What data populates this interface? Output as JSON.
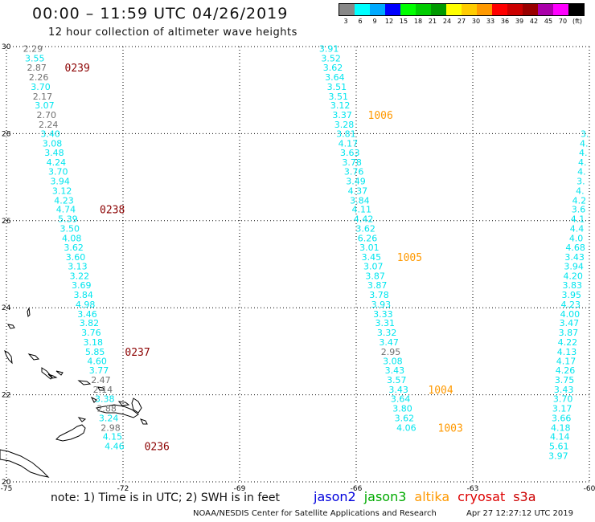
{
  "title": "00:00 – 11:59 UTC 04/26/2019",
  "subtitle": "12 hour collection of altimeter wave heights",
  "legend": {
    "unit": "(ft)",
    "bins": [
      {
        "label": "3",
        "color": "#888888"
      },
      {
        "label": "6",
        "color": "#00ffff"
      },
      {
        "label": "9",
        "color": "#00aaff"
      },
      {
        "label": "12",
        "color": "#0000ff"
      },
      {
        "label": "15",
        "color": "#00ff00"
      },
      {
        "label": "18",
        "color": "#00cc00"
      },
      {
        "label": "21",
        "color": "#009900"
      },
      {
        "label": "24",
        "color": "#ffff00"
      },
      {
        "label": "27",
        "color": "#ffcc00"
      },
      {
        "label": "30",
        "color": "#ff9900"
      },
      {
        "label": "33",
        "color": "#ff0000"
      },
      {
        "label": "36",
        "color": "#cc0000"
      },
      {
        "label": "39",
        "color": "#990000"
      },
      {
        "label": "42",
        "color": "#aa00aa"
      },
      {
        "label": "45",
        "color": "#ff00ff"
      },
      {
        "label": "70",
        "color": "#000000"
      }
    ]
  },
  "map": {
    "lon_range": [
      -75,
      -60
    ],
    "lat_range": [
      20,
      30
    ],
    "lon_labels": [
      {
        "lon": -75,
        "text": "-75"
      },
      {
        "lon": -72,
        "text": "-72"
      },
      {
        "lon": -69,
        "text": "-69"
      },
      {
        "lon": -66,
        "text": "-66"
      },
      {
        "lon": -63,
        "text": "-63"
      },
      {
        "lon": -60,
        "text": "-60"
      }
    ],
    "lat_labels": [
      {
        "lat": 30,
        "text": "30"
      },
      {
        "lat": 28,
        "text": "28"
      },
      {
        "lat": 26,
        "text": "26"
      },
      {
        "lat": 24,
        "text": "24"
      },
      {
        "lat": 22,
        "text": "22"
      },
      {
        "lat": 20,
        "text": "20"
      }
    ],
    "colors": {
      "gray": "#707070",
      "cyan": "#00e5ee",
      "time_dark": "#8b0000",
      "time_orange": "#ff9900"
    },
    "tracks": [
      {
        "points": [
          {
            "lat": 29.95,
            "lon": -74.32,
            "v": "2.29",
            "c": "gray"
          },
          {
            "lat": 29.73,
            "lon": -74.27,
            "v": "3.55",
            "c": "cyan"
          },
          {
            "lat": 29.52,
            "lon": -74.22,
            "v": "2.87",
            "c": "gray"
          },
          {
            "lat": 29.3,
            "lon": -74.17,
            "v": "2.26",
            "c": "gray"
          },
          {
            "lat": 29.08,
            "lon": -74.12,
            "v": "3.70",
            "c": "cyan"
          },
          {
            "lat": 28.86,
            "lon": -74.07,
            "v": "2.17",
            "c": "gray"
          },
          {
            "lat": 28.65,
            "lon": -74.02,
            "v": "3.07",
            "c": "cyan"
          },
          {
            "lat": 28.43,
            "lon": -73.97,
            "v": "2.70",
            "c": "gray"
          },
          {
            "lat": 28.21,
            "lon": -73.92,
            "v": "2.24",
            "c": "gray"
          },
          {
            "lat": 28.0,
            "lon": -73.87,
            "v": "3.40",
            "c": "cyan"
          },
          {
            "lat": 27.78,
            "lon": -73.82,
            "v": "3.08",
            "c": "cyan"
          },
          {
            "lat": 27.56,
            "lon": -73.77,
            "v": "3.48",
            "c": "cyan"
          },
          {
            "lat": 27.34,
            "lon": -73.72,
            "v": "4.24",
            "c": "cyan"
          },
          {
            "lat": 27.13,
            "lon": -73.67,
            "v": "3.70",
            "c": "cyan"
          },
          {
            "lat": 26.91,
            "lon": -73.62,
            "v": "3.94",
            "c": "cyan"
          },
          {
            "lat": 26.69,
            "lon": -73.57,
            "v": "3.12",
            "c": "cyan"
          },
          {
            "lat": 26.47,
            "lon": -73.52,
            "v": "4.23",
            "c": "cyan"
          },
          {
            "lat": 26.26,
            "lon": -73.47,
            "v": "4.74",
            "c": "cyan"
          },
          {
            "lat": 26.04,
            "lon": -73.42,
            "v": "5.39",
            "c": "cyan"
          },
          {
            "lat": 25.82,
            "lon": -73.37,
            "v": "3.50",
            "c": "cyan"
          },
          {
            "lat": 25.6,
            "lon": -73.32,
            "v": "4.08",
            "c": "cyan"
          },
          {
            "lat": 25.39,
            "lon": -73.27,
            "v": "3.62",
            "c": "cyan"
          },
          {
            "lat": 25.17,
            "lon": -73.22,
            "v": "3.60",
            "c": "cyan"
          },
          {
            "lat": 24.95,
            "lon": -73.17,
            "v": "3.13",
            "c": "cyan"
          },
          {
            "lat": 24.73,
            "lon": -73.12,
            "v": "3.22",
            "c": "cyan"
          },
          {
            "lat": 24.52,
            "lon": -73.07,
            "v": "3.69",
            "c": "cyan"
          },
          {
            "lat": 24.3,
            "lon": -73.02,
            "v": "3.84",
            "c": "cyan"
          },
          {
            "lat": 24.08,
            "lon": -72.97,
            "v": "4.98",
            "c": "cyan"
          },
          {
            "lat": 23.86,
            "lon": -72.92,
            "v": "3.46",
            "c": "cyan"
          },
          {
            "lat": 23.65,
            "lon": -72.87,
            "v": "3.82",
            "c": "cyan"
          },
          {
            "lat": 23.43,
            "lon": -72.82,
            "v": "3.76",
            "c": "cyan"
          },
          {
            "lat": 23.21,
            "lon": -72.77,
            "v": "3.18",
            "c": "cyan"
          },
          {
            "lat": 22.99,
            "lon": -72.72,
            "v": "5.85",
            "c": "cyan"
          },
          {
            "lat": 22.78,
            "lon": -72.67,
            "v": "4.60",
            "c": "cyan"
          },
          {
            "lat": 22.56,
            "lon": -72.62,
            "v": "3.77",
            "c": "cyan"
          },
          {
            "lat": 22.34,
            "lon": -72.57,
            "v": "2.47",
            "c": "gray"
          },
          {
            "lat": 22.12,
            "lon": -72.52,
            "v": "2.14",
            "c": "gray"
          },
          {
            "lat": 21.91,
            "lon": -72.47,
            "v": "3.38",
            "c": "cyan"
          },
          {
            "lat": 21.69,
            "lon": -72.42,
            "v": "2.88",
            "c": "gray"
          },
          {
            "lat": 21.47,
            "lon": -72.37,
            "v": "3.24",
            "c": "cyan"
          },
          {
            "lat": 21.25,
            "lon": -72.32,
            "v": "2.98",
            "c": "gray"
          },
          {
            "lat": 21.04,
            "lon": -72.27,
            "v": "4.15",
            "c": "cyan"
          },
          {
            "lat": 20.82,
            "lon": -72.22,
            "v": "4.46",
            "c": "cyan"
          }
        ],
        "times": [
          {
            "lat": 29.52,
            "lon": -73.5,
            "text": "0239"
          },
          {
            "lat": 26.26,
            "lon": -72.6,
            "text": "0238"
          },
          {
            "lat": 22.99,
            "lon": -71.95,
            "text": "0237"
          },
          {
            "lat": 20.82,
            "lon": -71.45,
            "text": "0236"
          }
        ],
        "time_color": "time_dark"
      },
      {
        "points": [
          {
            "lat": 29.95,
            "lon": -66.7,
            "v": "3.91",
            "c": "cyan"
          },
          {
            "lat": 29.73,
            "lon": -66.65,
            "v": "3.52",
            "c": "cyan"
          },
          {
            "lat": 29.52,
            "lon": -66.6,
            "v": "3.62",
            "c": "cyan"
          },
          {
            "lat": 29.3,
            "lon": -66.55,
            "v": "3.64",
            "c": "cyan"
          },
          {
            "lat": 29.08,
            "lon": -66.5,
            "v": "3.51",
            "c": "cyan"
          },
          {
            "lat": 28.86,
            "lon": -66.46,
            "v": "3.51",
            "c": "cyan"
          },
          {
            "lat": 28.65,
            "lon": -66.41,
            "v": "3.12",
            "c": "cyan"
          },
          {
            "lat": 28.43,
            "lon": -66.36,
            "v": "3.37",
            "c": "cyan"
          },
          {
            "lat": 28.21,
            "lon": -66.31,
            "v": "3.28",
            "c": "cyan"
          },
          {
            "lat": 28.0,
            "lon": -66.26,
            "v": "3.81",
            "c": "cyan"
          },
          {
            "lat": 27.78,
            "lon": -66.21,
            "v": "4.17",
            "c": "cyan"
          },
          {
            "lat": 27.56,
            "lon": -66.16,
            "v": "3.63",
            "c": "cyan"
          },
          {
            "lat": 27.34,
            "lon": -66.11,
            "v": "3.78",
            "c": "cyan"
          },
          {
            "lat": 27.13,
            "lon": -66.06,
            "v": "3.76",
            "c": "cyan"
          },
          {
            "lat": 26.91,
            "lon": -66.01,
            "v": "3.49",
            "c": "cyan"
          },
          {
            "lat": 26.69,
            "lon": -65.96,
            "v": "4.37",
            "c": "cyan"
          },
          {
            "lat": 26.47,
            "lon": -65.91,
            "v": "3.84",
            "c": "cyan"
          },
          {
            "lat": 26.26,
            "lon": -65.86,
            "v": "4.11",
            "c": "cyan"
          },
          {
            "lat": 26.04,
            "lon": -65.81,
            "v": "4.42",
            "c": "cyan"
          },
          {
            "lat": 25.82,
            "lon": -65.76,
            "v": "3.62",
            "c": "cyan"
          },
          {
            "lat": 25.6,
            "lon": -65.71,
            "v": "6.26",
            "c": "cyan"
          },
          {
            "lat": 25.39,
            "lon": -65.66,
            "v": "3.01",
            "c": "cyan"
          },
          {
            "lat": 25.17,
            "lon": -65.61,
            "v": "3.45",
            "c": "cyan"
          },
          {
            "lat": 24.95,
            "lon": -65.56,
            "v": "3.07",
            "c": "cyan"
          },
          {
            "lat": 24.73,
            "lon": -65.51,
            "v": "3.87",
            "c": "cyan"
          },
          {
            "lat": 24.52,
            "lon": -65.46,
            "v": "3.87",
            "c": "cyan"
          },
          {
            "lat": 24.3,
            "lon": -65.41,
            "v": "3.78",
            "c": "cyan"
          },
          {
            "lat": 24.08,
            "lon": -65.36,
            "v": "3.93",
            "c": "cyan"
          },
          {
            "lat": 23.86,
            "lon": -65.31,
            "v": "3.33",
            "c": "cyan"
          },
          {
            "lat": 23.65,
            "lon": -65.26,
            "v": "3.31",
            "c": "cyan"
          },
          {
            "lat": 23.43,
            "lon": -65.21,
            "v": "3.32",
            "c": "cyan"
          },
          {
            "lat": 23.21,
            "lon": -65.16,
            "v": "3.47",
            "c": "cyan"
          },
          {
            "lat": 22.99,
            "lon": -65.11,
            "v": "2.95",
            "c": "gray"
          },
          {
            "lat": 22.78,
            "lon": -65.06,
            "v": "3.08",
            "c": "cyan"
          },
          {
            "lat": 22.56,
            "lon": -65.01,
            "v": "3.43",
            "c": "cyan"
          },
          {
            "lat": 22.34,
            "lon": -64.96,
            "v": "3.57",
            "c": "cyan"
          },
          {
            "lat": 22.12,
            "lon": -64.91,
            "v": "3.43",
            "c": "cyan"
          },
          {
            "lat": 21.91,
            "lon": -64.86,
            "v": "3.64",
            "c": "cyan"
          },
          {
            "lat": 21.69,
            "lon": -64.81,
            "v": "3.80",
            "c": "cyan"
          },
          {
            "lat": 21.47,
            "lon": -64.76,
            "v": "3.62",
            "c": "cyan"
          },
          {
            "lat": 21.25,
            "lon": -64.71,
            "v": "4.06",
            "c": "cyan"
          }
        ],
        "times": [
          {
            "lat": 28.43,
            "lon": -65.7,
            "text": "1006"
          },
          {
            "lat": 25.17,
            "lon": -64.95,
            "text": "1005"
          },
          {
            "lat": 22.12,
            "lon": -64.15,
            "text": "1004"
          },
          {
            "lat": 21.25,
            "lon": -63.9,
            "text": "1003"
          }
        ],
        "time_color": "time_orange"
      },
      {
        "points": [
          {
            "lat": 28.0,
            "lon": -60.12,
            "v": "3.",
            "c": "cyan"
          },
          {
            "lat": 27.78,
            "lon": -60.14,
            "v": "4.",
            "c": "cyan"
          },
          {
            "lat": 27.56,
            "lon": -60.16,
            "v": "4.",
            "c": "cyan"
          },
          {
            "lat": 27.34,
            "lon": -60.18,
            "v": "4.",
            "c": "cyan"
          },
          {
            "lat": 27.13,
            "lon": -60.2,
            "v": "4.",
            "c": "cyan"
          },
          {
            "lat": 26.91,
            "lon": -60.22,
            "v": "3.",
            "c": "cyan"
          },
          {
            "lat": 26.69,
            "lon": -60.24,
            "v": "4.",
            "c": "cyan"
          },
          {
            "lat": 26.47,
            "lon": -60.26,
            "v": "4.2",
            "c": "cyan"
          },
          {
            "lat": 26.26,
            "lon": -60.28,
            "v": "3.6",
            "c": "cyan"
          },
          {
            "lat": 26.04,
            "lon": -60.3,
            "v": "4.1",
            "c": "cyan"
          },
          {
            "lat": 25.82,
            "lon": -60.32,
            "v": "4.4",
            "c": "cyan"
          },
          {
            "lat": 25.6,
            "lon": -60.34,
            "v": "4.0",
            "c": "cyan"
          },
          {
            "lat": 25.39,
            "lon": -60.36,
            "v": "4.68",
            "c": "cyan"
          },
          {
            "lat": 25.17,
            "lon": -60.38,
            "v": "3.43",
            "c": "cyan"
          },
          {
            "lat": 24.95,
            "lon": -60.4,
            "v": "3.94",
            "c": "cyan"
          },
          {
            "lat": 24.73,
            "lon": -60.42,
            "v": "4.20",
            "c": "cyan"
          },
          {
            "lat": 24.52,
            "lon": -60.44,
            "v": "3.83",
            "c": "cyan"
          },
          {
            "lat": 24.3,
            "lon": -60.46,
            "v": "3.95",
            "c": "cyan"
          },
          {
            "lat": 24.08,
            "lon": -60.48,
            "v": "4.23",
            "c": "cyan"
          },
          {
            "lat": 23.86,
            "lon": -60.5,
            "v": "4.00",
            "c": "cyan"
          },
          {
            "lat": 23.65,
            "lon": -60.52,
            "v": "3.47",
            "c": "cyan"
          },
          {
            "lat": 23.43,
            "lon": -60.54,
            "v": "3.87",
            "c": "cyan"
          },
          {
            "lat": 23.21,
            "lon": -60.56,
            "v": "4.22",
            "c": "cyan"
          },
          {
            "lat": 22.99,
            "lon": -60.58,
            "v": "4.13",
            "c": "cyan"
          },
          {
            "lat": 22.78,
            "lon": -60.6,
            "v": "4.17",
            "c": "cyan"
          },
          {
            "lat": 22.56,
            "lon": -60.62,
            "v": "4.26",
            "c": "cyan"
          },
          {
            "lat": 22.34,
            "lon": -60.64,
            "v": "3.75",
            "c": "cyan"
          },
          {
            "lat": 22.12,
            "lon": -60.66,
            "v": "3.43",
            "c": "cyan"
          },
          {
            "lat": 21.91,
            "lon": -60.68,
            "v": "3.70",
            "c": "cyan"
          },
          {
            "lat": 21.69,
            "lon": -60.7,
            "v": "3.17",
            "c": "cyan"
          },
          {
            "lat": 21.47,
            "lon": -60.72,
            "v": "3.66",
            "c": "cyan"
          },
          {
            "lat": 21.25,
            "lon": -60.74,
            "v": "4.18",
            "c": "cyan"
          },
          {
            "lat": 21.04,
            "lon": -60.76,
            "v": "4.14",
            "c": "cyan"
          },
          {
            "lat": 20.82,
            "lon": -60.78,
            "v": "5.61",
            "c": "cyan"
          },
          {
            "lat": 20.6,
            "lon": -60.8,
            "v": "3.97",
            "c": "cyan"
          }
        ],
        "times": [],
        "time_color": "time_dark"
      }
    ]
  },
  "footer": {
    "note": "note:  1) Time is in UTC;  2) SWH is in feet",
    "satellites": [
      {
        "name": "jason2",
        "color": "#0000dd"
      },
      {
        "name": "jason3",
        "color": "#00aa00"
      },
      {
        "name": "altika",
        "color": "#ff9900"
      },
      {
        "name": "cryosat",
        "color": "#dd0000"
      },
      {
        "name": "s3a",
        "color": "#cc0000"
      }
    ],
    "credit": "NOAA/NESDIS Center for Satellite Applications and Research",
    "timestamp": "Apr 27 12:27:12 UTC 2019"
  }
}
